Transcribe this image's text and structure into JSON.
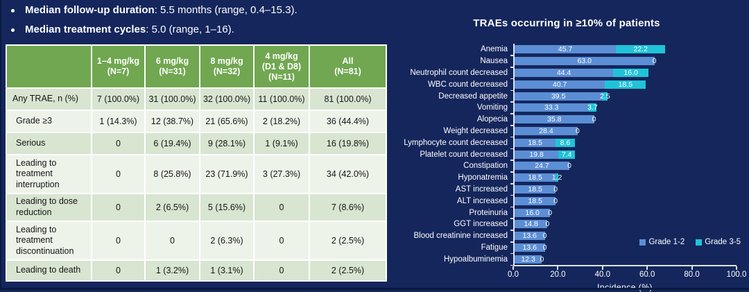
{
  "slide": {
    "background": "#14265c",
    "bullets": [
      {
        "bold": "Median follow-up duration",
        "rest": ": 5.5 months (range, 0.4–15.3)."
      },
      {
        "bold": "Median treatment cycles",
        "rest": ": 5.0 (range, 1–16)."
      }
    ]
  },
  "table": {
    "header_cols": [
      "1–4 mg/kg\n(N=7)",
      "6 mg/kg\n(N=31)",
      "8 mg/kg\n(N=32)",
      "4 mg/kg\n(D1 & D8)\n(N=11)",
      "All\n(N=81)"
    ],
    "rows": [
      {
        "label": "Any TRAE, n (%)",
        "values": [
          "7 (100.0%)",
          "31 (100.0%)",
          "32 (100.0%)",
          "11 (100.0%)",
          "81 (100.0%)"
        ]
      },
      {
        "label": "Grade ≥3",
        "values": [
          "1 (14.3%)",
          "12 (38.7%)",
          "21 (65.6%)",
          "2 (18.2%)",
          "36 (44.4%)"
        ]
      },
      {
        "label": "Serious",
        "values": [
          "0",
          "6 (19.4%)",
          "9 (28.1%)",
          "1 (9.1%)",
          "16 (19.8%)"
        ]
      },
      {
        "label": "Leading to treatment interruption",
        "values": [
          "0",
          "8 (25.8%)",
          "23 (71.9%)",
          "3 (27.3%)",
          "34 (42.0%)"
        ]
      },
      {
        "label": "Leading to dose reduction",
        "values": [
          "0",
          "2 (6.5%)",
          "5 (15.6%)",
          "0",
          "7 (8.6%)"
        ]
      },
      {
        "label": "Leading to treatment discontinuation",
        "values": [
          "0",
          "0",
          "2 (6.3%)",
          "0",
          "2 (2.5%)"
        ]
      },
      {
        "label": "Leading to death",
        "values": [
          "0",
          "1 (3.2%)",
          "1 (3.1%)",
          "0",
          "2 (2.5%)"
        ]
      }
    ],
    "colors": {
      "header_bg": "#70a750",
      "row_dark": "#d8e5d1",
      "row_light": "#eef3ea",
      "text": "#141414"
    }
  },
  "chart_data": {
    "type": "bar",
    "orientation": "horizontal-stacked",
    "title": "TRAEs occurring in ≥10% of patients",
    "xlabel": "Incidence  (%)",
    "xlim": [
      0,
      100
    ],
    "x_ticks": [
      "0.0",
      "20.0",
      "40.0",
      "60.0",
      "80.0",
      "100.0"
    ],
    "grid": false,
    "legend_position": "bottom-right",
    "legend": [
      {
        "label": "Grade 1-2",
        "color": "#5b8ed4"
      },
      {
        "label": "Grade 3-5",
        "color": "#20c3d8"
      }
    ],
    "categories": [
      "Anemia",
      "Nausea",
      "Neutrophil count decreased",
      "WBC count decreased",
      "Decreased appetite",
      "Vomiting",
      "Alopecia",
      "Weight decreased",
      "Lymphocyte count decreased",
      "Platelet count decreased",
      "Constipation",
      "Hyponatremia",
      "AST increased",
      "ALT increased",
      "Proteinuria",
      "GGT increased",
      "Blood creatinine increased",
      "Fatigue",
      "Hypoalbuminemia"
    ],
    "series": [
      {
        "name": "Grade 1-2",
        "values": [
          45.7,
          63.0,
          44.4,
          40.7,
          39.5,
          33.3,
          35.8,
          28.4,
          18.5,
          19.8,
          24.7,
          18.5,
          18.5,
          18.5,
          16.0,
          14.8,
          13.6,
          13.6,
          12.3
        ]
      },
      {
        "name": "Grade 3-5",
        "values": [
          22.2,
          0,
          16.0,
          18.5,
          2.5,
          3.7,
          0,
          0,
          8.6,
          7.4,
          0,
          1.2,
          0,
          0,
          0,
          0,
          0,
          0,
          0
        ]
      }
    ]
  }
}
